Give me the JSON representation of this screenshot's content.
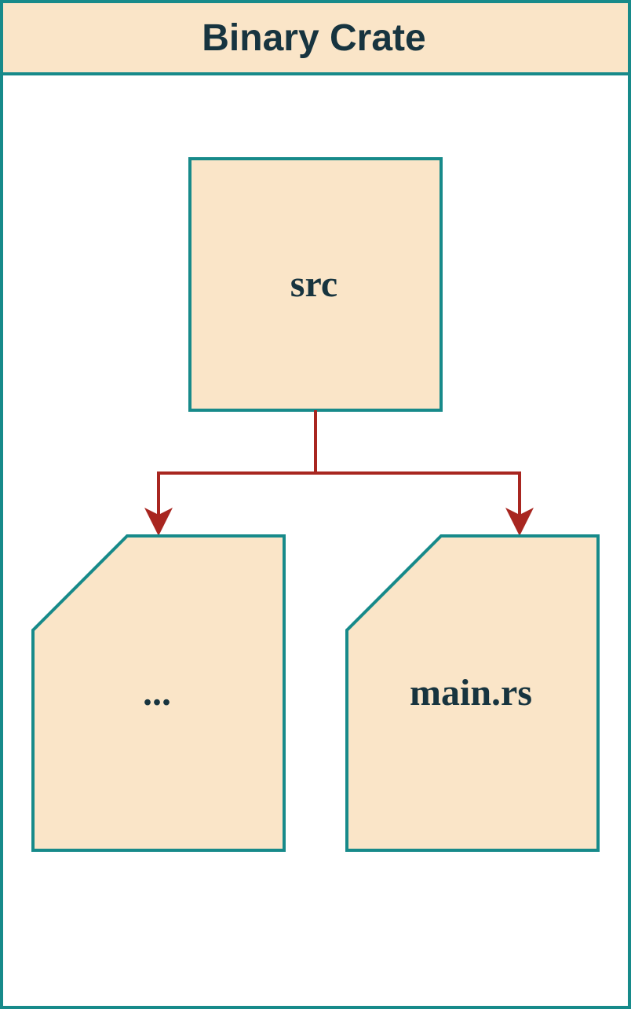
{
  "container": {
    "title": "Binary Crate"
  },
  "nodes": {
    "folder": {
      "label": "src"
    },
    "file_left": {
      "label": "..."
    },
    "file_right": {
      "label": "main.rs"
    }
  },
  "colors": {
    "fill": "#fae5c8",
    "stroke": "#178a8a",
    "text": "#17343f",
    "connector": "#a82620",
    "background": "#ffffff"
  }
}
